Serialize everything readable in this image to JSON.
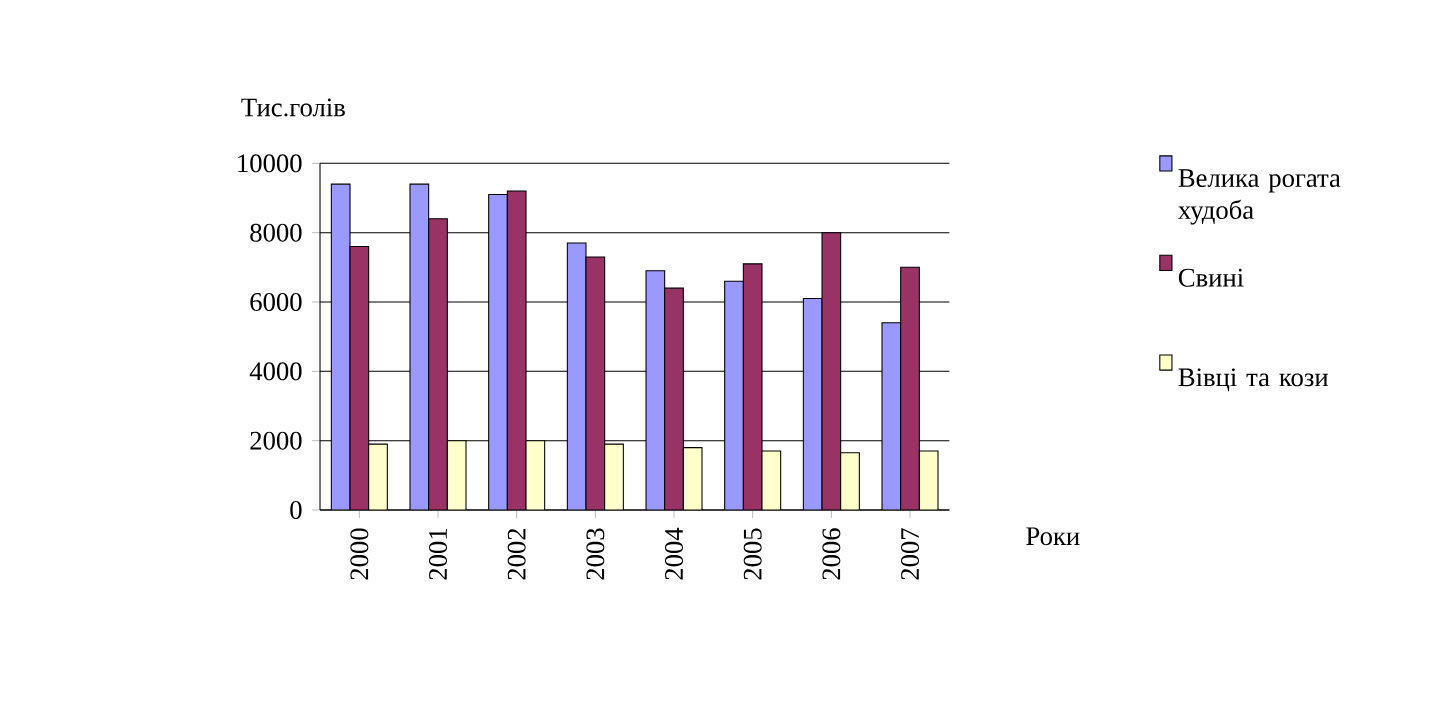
{
  "chart_data": {
    "type": "bar",
    "xlabel": "Роки",
    "ylabel": "Тис.голів",
    "categories": [
      "2000",
      "2001",
      "2002",
      "2003",
      "2004",
      "2005",
      "2006",
      "2007"
    ],
    "series": [
      {
        "name": "Велика рогата худоба",
        "color": "#9999ff",
        "values": [
          9400,
          9400,
          9100,
          7700,
          6900,
          6600,
          6100,
          5400
        ]
      },
      {
        "name": "Свині",
        "color": "#993366",
        "values": [
          7600,
          8400,
          9200,
          7300,
          6400,
          7100,
          8000,
          7000
        ]
      },
      {
        "name": "Вівці та кози",
        "color": "#ffffcc",
        "values": [
          1900,
          2000,
          2000,
          1900,
          1800,
          1700,
          1650,
          1700
        ]
      }
    ],
    "ylim": [
      0,
      10000
    ],
    "yticks": [
      0,
      2000,
      4000,
      6000,
      8000,
      10000
    ],
    "grid": "y",
    "legend": "right"
  }
}
